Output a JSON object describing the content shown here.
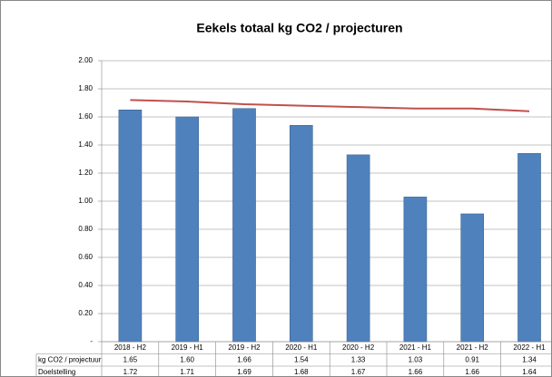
{
  "chart_data": {
    "type": "bar",
    "title": "Eekels totaal  kg CO2 / projecturen",
    "categories": [
      "2018 - H2",
      "2019 - H1",
      "2019 - H2",
      "2020 - H1",
      "2020 - H2",
      "2021 - H1",
      "2021 - H2",
      "2022 - H1"
    ],
    "series": [
      {
        "name": "kg CO2 / projectuur",
        "type": "bar",
        "color": "#4f81bd",
        "values": [
          1.65,
          1.6,
          1.66,
          1.54,
          1.33,
          1.03,
          0.91,
          1.34
        ],
        "value_labels": [
          "1.65",
          "1.60",
          "1.66",
          "1.54",
          "1.33",
          "1.03",
          "0.91",
          "1.34"
        ]
      },
      {
        "name": "Doelstelling",
        "type": "line",
        "color": "#c0504d",
        "values": [
          1.72,
          1.71,
          1.69,
          1.68,
          1.67,
          1.66,
          1.66,
          1.64
        ],
        "value_labels": [
          "1.72",
          "1.71",
          "1.69",
          "1.68",
          "1.67",
          "1.66",
          "1.66",
          "1.64"
        ]
      }
    ],
    "ylim": [
      0,
      2
    ],
    "yticks": [
      {
        "value": 0,
        "label": "-"
      },
      {
        "value": 0.2,
        "label": "0.20"
      },
      {
        "value": 0.4,
        "label": "0.40"
      },
      {
        "value": 0.6,
        "label": "0.60"
      },
      {
        "value": 0.8,
        "label": "0.80"
      },
      {
        "value": 1,
        "label": "1.00"
      },
      {
        "value": 1.2,
        "label": "1.20"
      },
      {
        "value": 1.4,
        "label": "1.40"
      },
      {
        "value": 1.6,
        "label": "1.60"
      },
      {
        "value": 1.8,
        "label": "1.80"
      },
      {
        "value": 2,
        "label": "2.00"
      }
    ],
    "grid": true
  }
}
